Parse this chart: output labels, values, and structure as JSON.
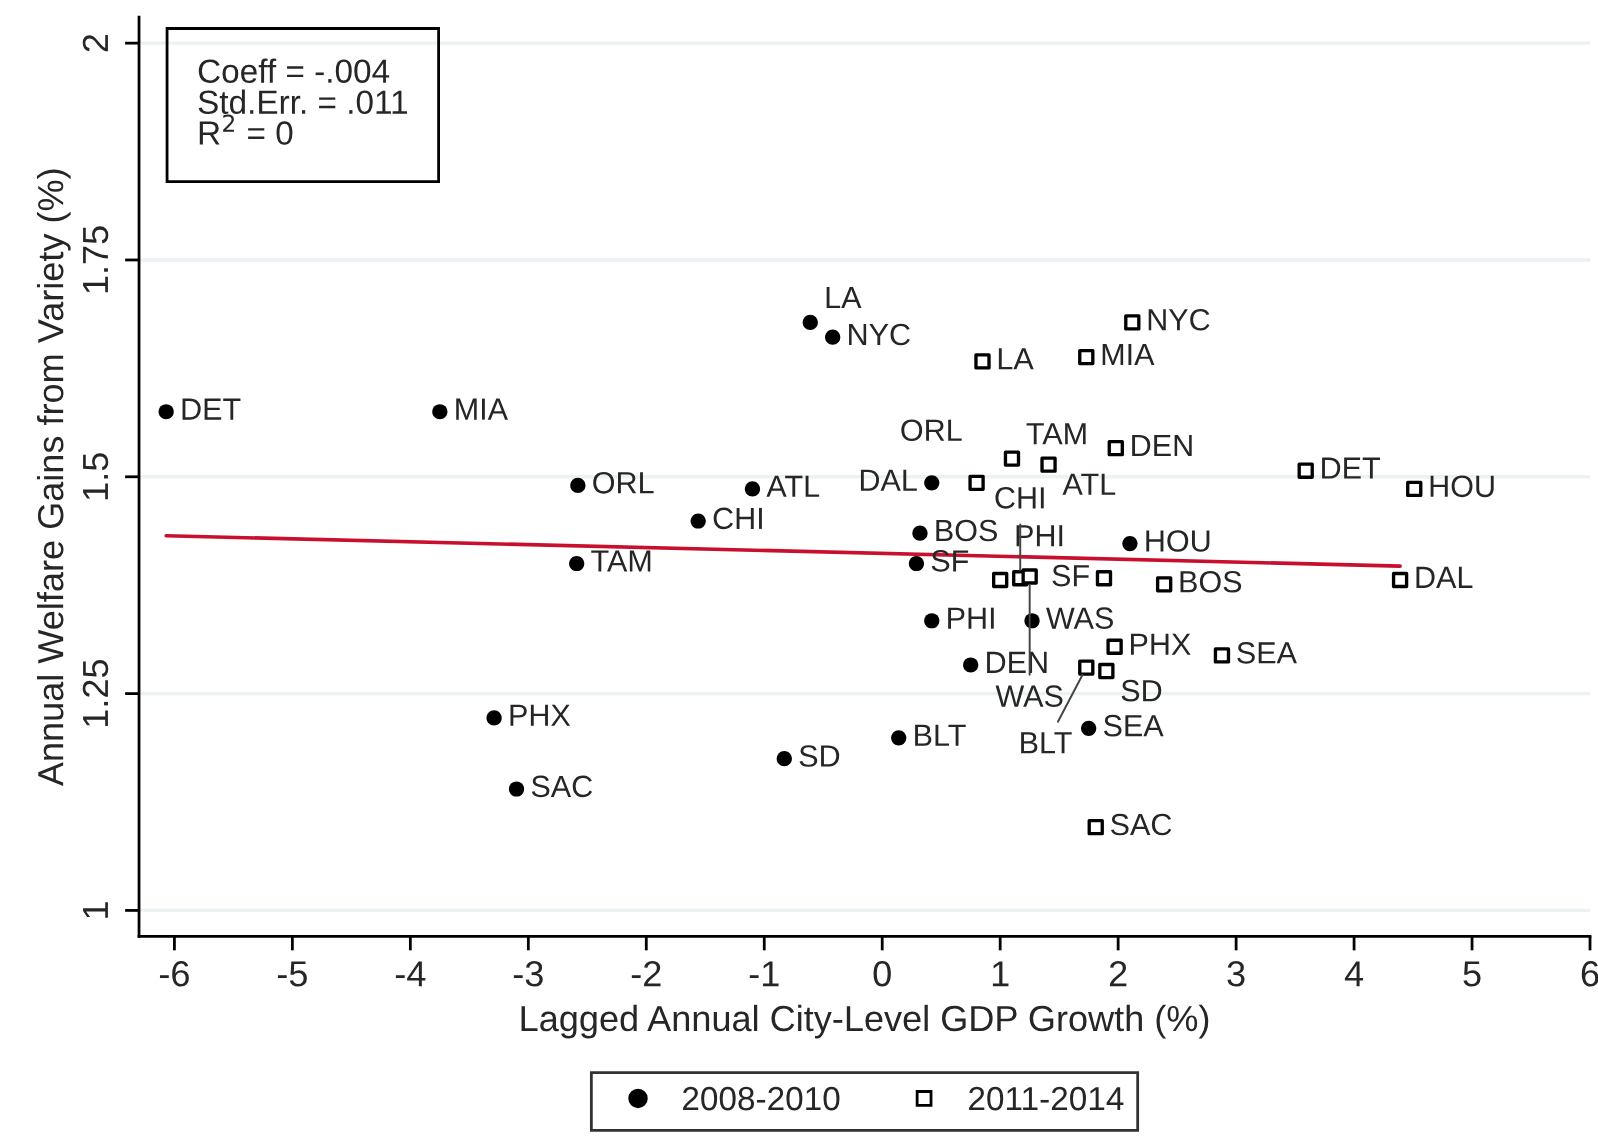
{
  "chart_data": {
    "type": "scatter",
    "xlabel": "Lagged Annual City-Level GDP Growth (%)",
    "ylabel": "Annual Welfare Gains from Variety (%)",
    "xlim": [
      -6.3,
      6
    ],
    "xticks": [
      -6,
      -5,
      -4,
      -3,
      -2,
      -1,
      0,
      1,
      2,
      3,
      4,
      5,
      6
    ],
    "ylim": [
      0.97,
      2.03
    ],
    "yticks": [
      1,
      1.25,
      1.5,
      1.75,
      2
    ],
    "grid": "y",
    "legend": "bottom",
    "series": [
      {
        "name": "2008-2010",
        "marker": "circle",
        "color": "#000000",
        "x": [
          -6.07,
          -3.75,
          -2.58,
          -1.1,
          -1.56,
          -2.59,
          -0.61,
          -0.42,
          0.42,
          0.32,
          0.29,
          2.1,
          0.42,
          1.27,
          0.75,
          1.75,
          0.14,
          -0.83,
          -3.29,
          -3.1
        ],
        "values": [
          1.575,
          1.575,
          1.49,
          1.486,
          1.449,
          1.4,
          1.678,
          1.661,
          1.493,
          1.435,
          1.4,
          1.423,
          1.334,
          1.334,
          1.283,
          1.21,
          1.199,
          1.175,
          1.222,
          1.14
        ]
      },
      {
        "name": "2011-2014",
        "marker": "square",
        "color": "#000000",
        "x": [
          2.12,
          0.85,
          1.73,
          1.1,
          1.41,
          1.98,
          0.8,
          3.59,
          4.51,
          4.39,
          2.39,
          1.88,
          1.0,
          1.17,
          1.25,
          1.97,
          2.88,
          1.73,
          1.9,
          1.81
        ],
        "values": [
          1.678,
          1.633,
          1.638,
          1.521,
          1.514,
          1.533,
          1.493,
          1.507,
          1.486,
          1.381,
          1.376,
          1.383,
          1.381,
          1.383,
          1.385,
          1.304,
          1.294,
          1.28,
          1.276,
          1.096
        ]
      },
      {
        "type": "line",
        "color": "#c8102e",
        "x": [
          -6.07,
          4.39
        ],
        "values": [
          1.432,
          1.397
        ]
      }
    ],
    "annotations": [
      "Coeff = -.004\nStd.Err. = .011\nR$^{2}$ = 0",
      {
        "text": "DET",
        "x": -6.07,
        "y": 1.575
      },
      {
        "text": "MIA",
        "x": -3.75,
        "y": 1.575
      },
      {
        "text": "ORL",
        "x": -2.58,
        "y": 1.49
      },
      {
        "text": "ATL",
        "x": -1.1,
        "y": 1.486
      },
      {
        "text": "CHI",
        "x": -1.56,
        "y": 1.449
      },
      {
        "text": "TAM",
        "x": -2.59,
        "y": 1.4
      },
      {
        "text": "LA",
        "x": -0.61,
        "y": 1.678
      },
      {
        "text": "NYC",
        "x": -0.42,
        "y": 1.661
      },
      {
        "text": "DAL",
        "x": 0.42,
        "y": 1.493
      },
      {
        "text": "BOS",
        "x": 0.32,
        "y": 1.435
      },
      {
        "text": "SF",
        "x": 0.29,
        "y": 1.4
      },
      {
        "text": "HOU",
        "x": 2.1,
        "y": 1.423
      },
      {
        "text": "PHI",
        "x": 0.42,
        "y": 1.334
      },
      {
        "text": "WAS",
        "x": 1.27,
        "y": 1.334
      },
      {
        "text": "DEN",
        "x": 0.75,
        "y": 1.283
      },
      {
        "text": "SEA",
        "x": 1.75,
        "y": 1.21
      },
      {
        "text": "BLT",
        "x": 0.14,
        "y": 1.199
      },
      {
        "text": "SD",
        "x": -0.83,
        "y": 1.175
      },
      {
        "text": "PHX",
        "x": -3.29,
        "y": 1.222
      },
      {
        "text": "SAC",
        "x": -3.1,
        "y": 1.14
      },
      {
        "text": "NYC",
        "x": 2.12,
        "y": 1.678
      },
      {
        "text": "LA",
        "x": 0.85,
        "y": 1.633
      },
      {
        "text": "MIA",
        "x": 1.73,
        "y": 1.638
      },
      {
        "text": "TAM",
        "x": 1.1,
        "y": 1.521
      },
      {
        "text": "ATL",
        "x": 1.41,
        "y": 1.514
      },
      {
        "text": "DEN",
        "x": 1.98,
        "y": 1.533
      },
      {
        "text": "ORL",
        "x": 0.8,
        "y": 1.493
      },
      {
        "text": "DET",
        "x": 3.59,
        "y": 1.507
      },
      {
        "text": "HOU",
        "x": 4.51,
        "y": 1.486
      },
      {
        "text": "DAL",
        "x": 4.39,
        "y": 1.381
      },
      {
        "text": "BOS",
        "x": 2.39,
        "y": 1.376
      },
      {
        "text": "SF",
        "x": 1.88,
        "y": 1.383
      },
      {
        "text": "PHI",
        "x": 1.0,
        "y": 1.381
      },
      {
        "text": "CHI",
        "x": 1.17,
        "y": 1.383
      },
      {
        "text": "WAS",
        "x": 1.25,
        "y": 1.385
      },
      {
        "text": "PHX",
        "x": 1.97,
        "y": 1.304
      },
      {
        "text": "SEA",
        "x": 2.88,
        "y": 1.294
      },
      {
        "text": "BLT",
        "x": 1.73,
        "y": 1.28
      },
      {
        "text": "SD",
        "x": 1.9,
        "y": 1.276
      },
      {
        "text": "SAC",
        "x": 1.81,
        "y": 1.096
      }
    ]
  }
}
